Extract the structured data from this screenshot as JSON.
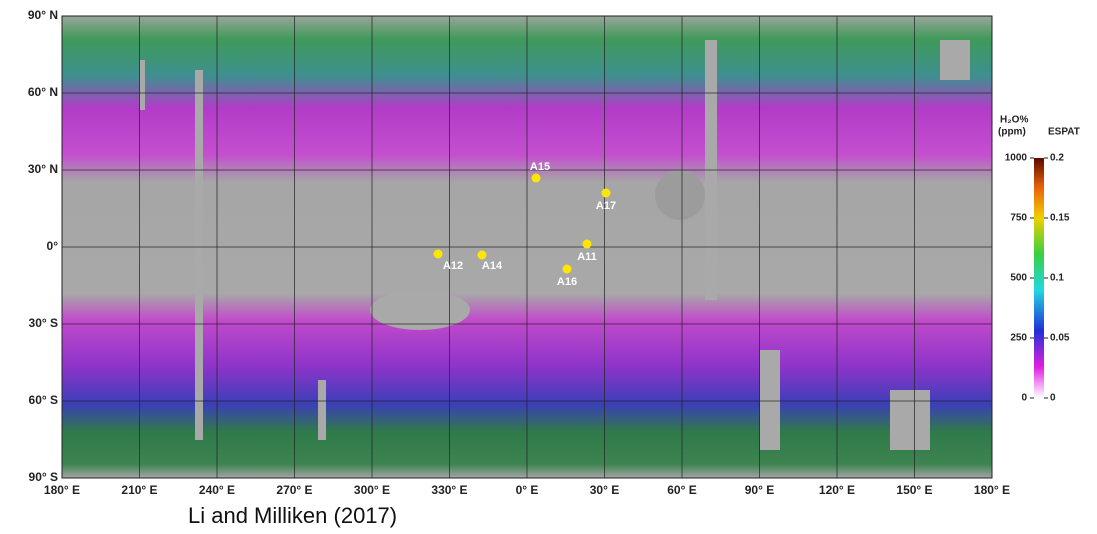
{
  "map": {
    "lat_labels": [
      "90° N",
      "60° N",
      "30° N",
      "0°",
      "30° S",
      "60° S",
      "90° S"
    ],
    "lon_labels": [
      "180° E",
      "210° E",
      "240° E",
      "270° E",
      "300° E",
      "330° E",
      "0° E",
      "30° E",
      "60° E",
      "90° E",
      "120° E",
      "150° E",
      "180° E"
    ],
    "sites": [
      "A15",
      "A17",
      "A12",
      "A14",
      "A11",
      "A16"
    ]
  },
  "colorbar": {
    "title_h2o": "H₂O%",
    "title_ppm": "(ppm)",
    "title_espat": "ESPAT",
    "ppm_range": [
      0,
      1000
    ],
    "ppm_ticks": [
      1000,
      750,
      500,
      250,
      0
    ],
    "espat_range": [
      0,
      0.2
    ],
    "espat_ticks": [
      0.2,
      0.15,
      0.1,
      0.05,
      0
    ]
  },
  "caption": "Li and Milliken (2017)"
}
